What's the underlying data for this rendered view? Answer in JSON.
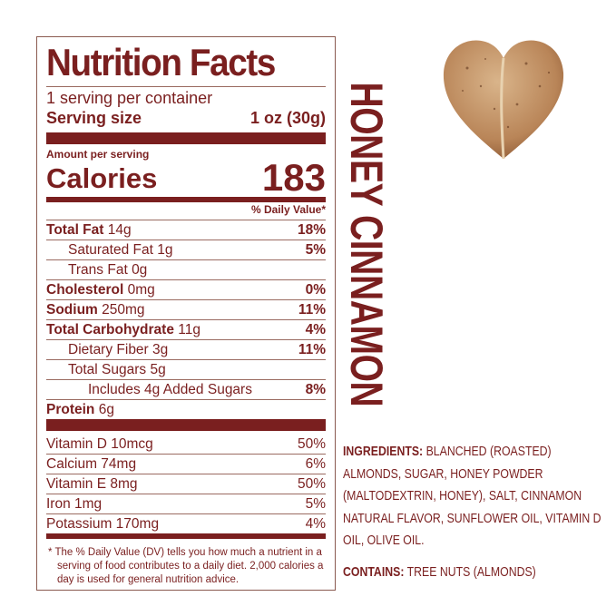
{
  "label": {
    "title": "Nutrition Facts",
    "servings_per_container": "1 serving per container",
    "serving_size_label": "Serving size",
    "serving_size_value": "1 oz (30g)",
    "amount_per_serving": "Amount per serving",
    "calories_label": "Calories",
    "calories_value": "183",
    "dv_header": "% Daily Value*",
    "nutrients": [
      {
        "name": "Total Fat",
        "amount": "14g",
        "dv": "18%",
        "bold": true,
        "indent": 0
      },
      {
        "name": "Saturated Fat",
        "amount": "1g",
        "dv": "5%",
        "bold": false,
        "indent": 1
      },
      {
        "name": "Trans Fat",
        "amount": "0g",
        "dv": "",
        "bold": false,
        "indent": 1
      },
      {
        "name": "Cholesterol",
        "amount": "0mg",
        "dv": "0%",
        "bold": true,
        "indent": 0
      },
      {
        "name": "Sodium",
        "amount": "250mg",
        "dv": "11%",
        "bold": true,
        "indent": 0
      },
      {
        "name": "Total Carbohydrate",
        "amount": "11g",
        "dv": "4%",
        "bold": true,
        "indent": 0
      },
      {
        "name": "Dietary Fiber",
        "amount": "3g",
        "dv": "11%",
        "bold": false,
        "indent": 1
      },
      {
        "name": "Total Sugars",
        "amount": "5g",
        "dv": "",
        "bold": false,
        "indent": 1
      },
      {
        "name": "Includes 4g Added Sugars",
        "amount": "",
        "dv": "8%",
        "bold": false,
        "indent": 2
      },
      {
        "name": "Protein",
        "amount": "6g",
        "dv": "",
        "bold": true,
        "indent": 0
      }
    ],
    "vitamins": [
      {
        "name": "Vitamin D 10mcg",
        "dv": "50%"
      },
      {
        "name": "Calcium 74mg",
        "dv": "6%"
      },
      {
        "name": "Vitamin E 8mg",
        "dv": "50%"
      },
      {
        "name": "Iron 1mg",
        "dv": "5%"
      },
      {
        "name": "Potassium 170mg",
        "dv": "4%"
      }
    ],
    "footnote": "* The % Daily Value (DV) tells you how much a nutrient in a serving of food contributes to a daily diet. 2,000 calories a day is used for general nutrition advice."
  },
  "flavor": "HONEY CINNAMON",
  "ingredients": {
    "heading": "INGREDIENTS:",
    "text": "BLANCHED (ROASTED) ALMONDS, SUGAR, HONEY POWDER (MALTODEXTRIN, HONEY), SALT, CINNAMON NATURAL FLAVOR, SUNFLOWER OIL, VITAMIN D OIL, OLIVE OIL."
  },
  "contains": {
    "heading": "CONTAINS:",
    "text": "TREE NUTS (ALMONDS)"
  },
  "colors": {
    "brand": "#7a1f1f"
  }
}
